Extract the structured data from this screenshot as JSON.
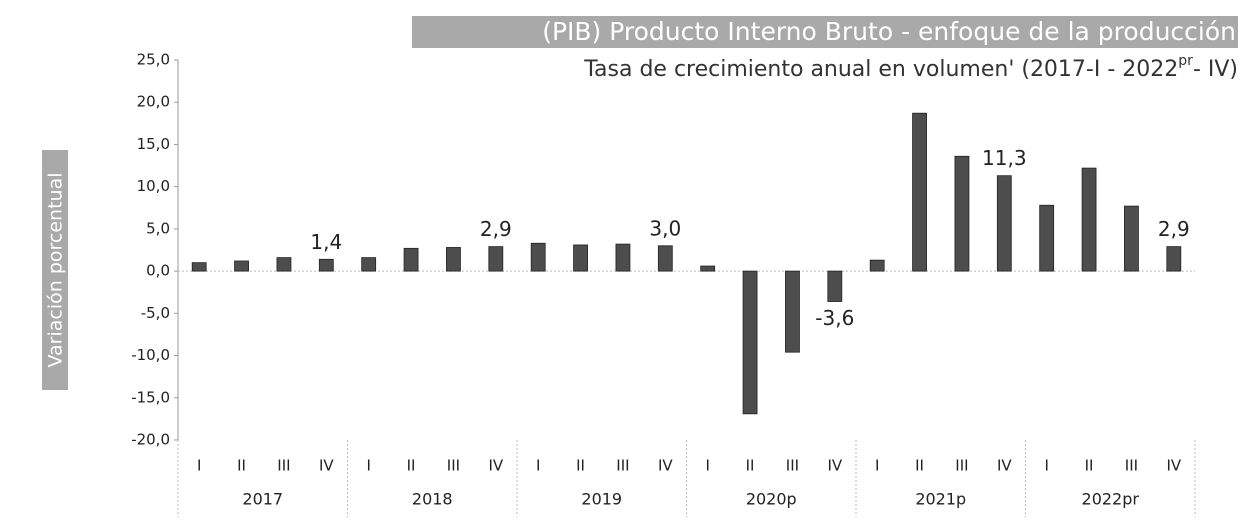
{
  "chart_data": {
    "type": "bar",
    "title": "(PIB) Producto Interno Bruto - enfoque de la producción",
    "subtitle_parts": [
      "Tasa de crecimiento anual en volumen' (2017-I - 2022",
      "pr",
      "- IV)"
    ],
    "y_label": "Variación porcentual",
    "categories": [
      "I",
      "II",
      "III",
      "IV",
      "I",
      "II",
      "III",
      "IV",
      "I",
      "II",
      "III",
      "IV",
      "I",
      "II",
      "III",
      "IV",
      "I",
      "II",
      "III",
      "IV",
      "I",
      "II",
      "III",
      "IV"
    ],
    "groups": [
      "2017",
      "2018",
      "2019",
      "2020p",
      "2021p",
      "2022pr"
    ],
    "values": [
      1.0,
      1.2,
      1.6,
      1.4,
      1.6,
      2.7,
      2.8,
      2.9,
      3.3,
      3.1,
      3.2,
      3.0,
      0.6,
      -16.9,
      -9.6,
      -3.6,
      1.3,
      18.7,
      13.6,
      11.3,
      7.8,
      12.2,
      7.7,
      2.9
    ],
    "value_labels": [
      null,
      null,
      null,
      "1,4",
      null,
      null,
      null,
      "2,9",
      null,
      null,
      null,
      "3,0",
      null,
      null,
      null,
      "-3,6",
      null,
      null,
      null,
      "11,3",
      null,
      null,
      null,
      "2,9"
    ],
    "color": "#4d4d4d",
    "ylim": [
      -20,
      25
    ],
    "yticks": [
      {
        "value": -20,
        "label": "-20,0"
      },
      {
        "value": -15,
        "label": "-15,0"
      },
      {
        "value": -10,
        "label": "-10,0"
      },
      {
        "value": -5,
        "label": "-5,0"
      },
      {
        "value": 0,
        "label": "0,0"
      },
      {
        "value": 5,
        "label": "5,0"
      },
      {
        "value": 10,
        "label": "10,0"
      },
      {
        "value": 15,
        "label": "15,0"
      },
      {
        "value": 20,
        "label": "20,0"
      },
      {
        "value": 25,
        "label": "25,0"
      }
    ],
    "grid": false
  }
}
